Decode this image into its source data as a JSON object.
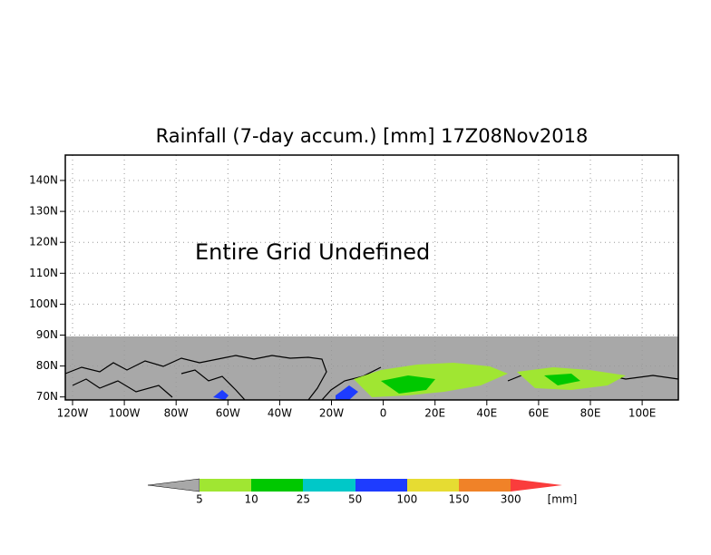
{
  "title": "Rainfall (7-day accum.) [mm] 17Z08Nov2018",
  "annotation": "Entire Grid Undefined",
  "map": {
    "lat_labels": [
      "140N",
      "130N",
      "120N",
      "110N",
      "100N",
      "90N",
      "80N",
      "70N"
    ],
    "lon_labels": [
      "120W",
      "100W",
      "80W",
      "60W",
      "40W",
      "20W",
      "0",
      "20E",
      "40E",
      "60E",
      "80E",
      "100E"
    ]
  },
  "colorbar": {
    "labels": [
      "5",
      "10",
      "25",
      "50",
      "100",
      "150",
      "300"
    ],
    "unit": "[mm]"
  }
}
